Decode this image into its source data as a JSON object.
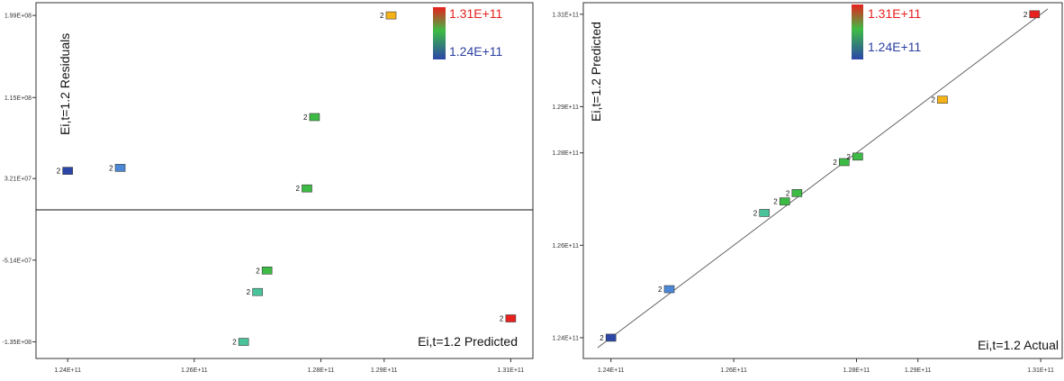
{
  "colors": {
    "high": "#e8201e",
    "orange": "#f5b317",
    "green": "#3dbb45",
    "teal": "#4bc39a",
    "blue": "#4a88d6",
    "low": "#2c46a8",
    "axis": "#333333",
    "legend_high_text": "#e8201e",
    "legend_low_text": "#2c3fa0"
  },
  "chart_data": [
    {
      "type": "scatter",
      "title": "",
      "xlabel": "Ei,t=1.2 Predicted",
      "ylabel": "Ei,t=1.2 Residuals",
      "xlim": [
        123500000000.0,
        131350000000.0
      ],
      "ylim": [
        -152000000.0,
        212000000.0
      ],
      "xticks": [
        124000000000.0,
        126000000000.0,
        128000000000.0,
        129000000000.0,
        131000000000.0
      ],
      "xtick_labels": [
        "1.24E+11",
        "1.26E+11",
        "1.28E+11",
        "1.29E+11",
        "1.31E+11"
      ],
      "yticks": [
        -135000000.0,
        -51400000.0,
        32100000.0,
        115000000.0,
        199000000.0
      ],
      "ytick_labels": [
        "-1.35E+08",
        "-5.14E+07",
        "3.21E+07",
        "1.15E+08",
        "1.99E+08"
      ],
      "zero_line": 0,
      "grid": false,
      "legend": {
        "high_label": "1.31E+11",
        "low_label": "1.24E+11",
        "placement": "top-right"
      },
      "points": [
        {
          "x": 124000000000.0,
          "y": 40000000.0,
          "label": "2",
          "color": "#2c46a8"
        },
        {
          "x": 124830000000.0,
          "y": 43000000.0,
          "label": "2",
          "color": "#4a88d6"
        },
        {
          "x": 127900000000.0,
          "y": 95000000.0,
          "label": "2",
          "color": "#3dbb45"
        },
        {
          "x": 127780000000.0,
          "y": 22000000.0,
          "label": "2",
          "color": "#3dbb45"
        },
        {
          "x": 129110000000.0,
          "y": 199000000.0,
          "label": "2",
          "color": "#f5b317"
        },
        {
          "x": 127150000000.0,
          "y": -62000000.0,
          "label": "2",
          "color": "#3dbb45"
        },
        {
          "x": 127000000000.0,
          "y": -84000000.0,
          "label": "2",
          "color": "#4bc39a"
        },
        {
          "x": 126780000000.0,
          "y": -135000000.0,
          "label": "2",
          "color": "#4bc39a"
        },
        {
          "x": 131000000000.0,
          "y": -111000000.0,
          "label": "2",
          "color": "#e8201e"
        }
      ]
    },
    {
      "type": "scatter",
      "title": "",
      "xlabel": "Ei,t=1.2 Actual",
      "ylabel": "Ei,t=1.2 Predicted",
      "xlim": [
        123550000000.0,
        131350000000.0
      ],
      "ylim": [
        123550000000.0,
        131250000000.0
      ],
      "xticks": [
        124000000000.0,
        126000000000.0,
        128000000000.0,
        129000000000.0,
        131000000000.0
      ],
      "xtick_labels": [
        "1.24E+11",
        "1.26E+11",
        "1.28E+11",
        "1.29E+11",
        "1.31E+11"
      ],
      "yticks": [
        124000000000.0,
        126000000000.0,
        128000000000.0,
        129000000000.0,
        131000000000.0
      ],
      "ytick_labels": [
        "1.24E+11",
        "1.26E+11",
        "1.28E+11",
        "1.29E+11",
        "1.31E+11"
      ],
      "reference_line": "y = x",
      "grid": false,
      "legend": {
        "high_label": "1.31E+11",
        "low_label": "1.24E+11",
        "placement": "top-center"
      },
      "points": [
        {
          "x": 124000000000.0,
          "y": 124000000000.0,
          "label": "2",
          "color": "#2c46a8"
        },
        {
          "x": 124950000000.0,
          "y": 125050000000.0,
          "label": "2",
          "color": "#4a88d6"
        },
        {
          "x": 126500000000.0,
          "y": 126700000000.0,
          "label": "2",
          "color": "#4bc39a"
        },
        {
          "x": 126830000000.0,
          "y": 126950000000.0,
          "label": "2",
          "color": "#3dbb45"
        },
        {
          "x": 127030000000.0,
          "y": 127130000000.0,
          "label": "2",
          "color": "#3dbb45"
        },
        {
          "x": 127800000000.0,
          "y": 127800000000.0,
          "label": "2",
          "color": "#3dbb45"
        },
        {
          "x": 128020000000.0,
          "y": 127920000000.0,
          "label": "2",
          "color": "#3dbb45"
        },
        {
          "x": 129400000000.0,
          "y": 129150000000.0,
          "label": "2",
          "color": "#f5b317"
        },
        {
          "x": 130900000000.0,
          "y": 131000000000.0,
          "label": "2",
          "color": "#e8201e"
        }
      ]
    }
  ]
}
